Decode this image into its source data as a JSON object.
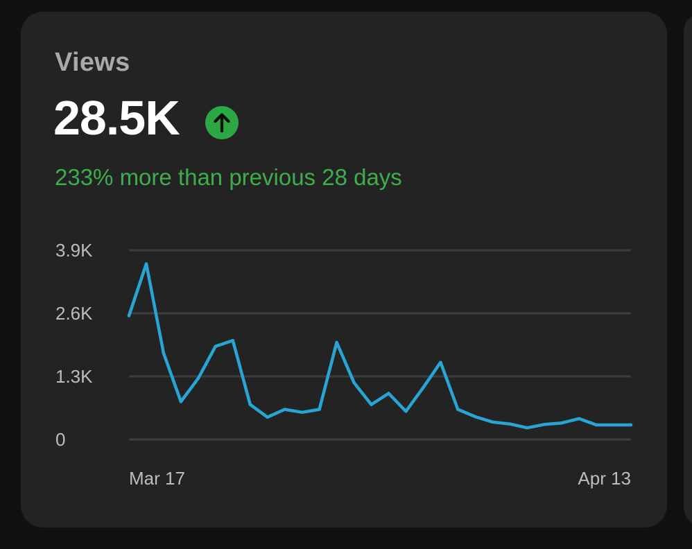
{
  "card": {
    "title": "Views",
    "value": "28.5K",
    "trend_icon": "arrow-up-icon",
    "delta_text": "233% more than previous 28 days"
  },
  "colors": {
    "background": "#111111",
    "card": "#232323",
    "line": "#27a6d6",
    "positive": "#3eae4c",
    "grid": "#3c3c3c"
  },
  "chart_data": {
    "type": "line",
    "title": "",
    "xlabel": "",
    "ylabel": "",
    "ylim": [
      0,
      3900
    ],
    "y_ticks": [
      {
        "value": 0,
        "label": "0"
      },
      {
        "value": 1300,
        "label": "1.3K"
      },
      {
        "value": 2600,
        "label": "2.6K"
      },
      {
        "value": 3900,
        "label": "3.9K"
      }
    ],
    "x_range": [
      "Mar 16",
      "Apr 14"
    ],
    "x_tick_labels": [
      {
        "date": "Mar 16",
        "label": "Mar 17"
      },
      {
        "date": "Apr 14",
        "label": "Apr 13"
      }
    ],
    "grid": true,
    "legend": "none",
    "series": [
      {
        "x": [
          "Mar 16",
          "Mar 17",
          "Mar 18",
          "Mar 19",
          "Mar 20",
          "Mar 21",
          "Mar 22",
          "Mar 23",
          "Mar 24",
          "Mar 25",
          "Mar 26",
          "Mar 27",
          "Mar 28",
          "Mar 29",
          "Mar 30",
          "Mar 31",
          "Apr 1",
          "Apr 2",
          "Apr 3",
          "Apr 4",
          "Apr 5",
          "Apr 6",
          "Apr 7",
          "Apr 8",
          "Apr 9",
          "Apr 10",
          "Apr 11",
          "Apr 12",
          "Apr 13",
          "Apr 14"
        ],
        "values": [
          2550,
          3620,
          1780,
          780,
          1260,
          1920,
          2040,
          720,
          460,
          620,
          560,
          620,
          2000,
          1170,
          720,
          950,
          580,
          1070,
          1590,
          620,
          470,
          360,
          320,
          240,
          310,
          340,
          430,
          300,
          300,
          300
        ]
      }
    ]
  }
}
